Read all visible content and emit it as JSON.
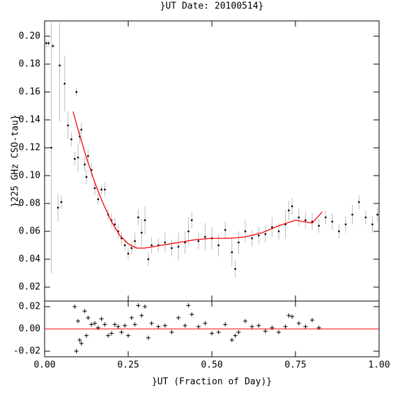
{
  "chart_data": [
    {
      "type": "scatter",
      "title": "}UT Date: 20100514}",
      "ylabel": "}225 GHz CSO-tau}",
      "xlim": [
        0,
        1
      ],
      "ylim": [
        0.01,
        0.211
      ],
      "yticks": [
        {
          "value": 0.02,
          "label": "0.02"
        },
        {
          "value": 0.04,
          "label": "0.04"
        },
        {
          "value": 0.06,
          "label": "0.06"
        },
        {
          "value": 0.08,
          "label": "0.08"
        },
        {
          "value": 0.1,
          "label": "0.10"
        },
        {
          "value": 0.12,
          "label": "0.12"
        },
        {
          "value": 0.14,
          "label": "0.14"
        },
        {
          "value": 0.16,
          "label": "0.16"
        },
        {
          "value": 0.18,
          "label": "0.18"
        },
        {
          "value": 0.2,
          "label": "0.20"
        }
      ],
      "xticks": [
        0,
        0.25,
        0.5,
        0.75,
        1
      ],
      "series": [
        {
          "color": "#000000",
          "error_color": "#bbbbbb",
          "x": [
            0.005,
            0.012,
            0.02,
            0.025,
            0.04,
            0.045,
            0.05,
            0.06,
            0.07,
            0.08,
            0.09,
            0.095,
            0.1,
            0.105,
            0.11,
            0.12,
            0.125,
            0.13,
            0.14,
            0.15,
            0.16,
            0.17,
            0.18,
            0.19,
            0.2,
            0.21,
            0.22,
            0.23,
            0.24,
            0.25,
            0.26,
            0.27,
            0.28,
            0.29,
            0.3,
            0.31,
            0.32,
            0.34,
            0.36,
            0.38,
            0.4,
            0.42,
            0.43,
            0.44,
            0.46,
            0.48,
            0.5,
            0.52,
            0.54,
            0.56,
            0.57,
            0.58,
            0.6,
            0.62,
            0.64,
            0.66,
            0.68,
            0.7,
            0.72,
            0.73,
            0.74,
            0.76,
            0.78,
            0.8,
            0.82,
            0.84,
            0.86,
            0.88,
            0.9,
            0.92,
            0.94,
            0.96,
            0.98,
            0.995
          ],
          "values": [
            0.195,
            0.195,
            0.12,
            0.193,
            0.077,
            0.179,
            0.081,
            0.166,
            0.136,
            0.126,
            0.112,
            0.16,
            0.113,
            0.128,
            0.133,
            0.108,
            0.099,
            0.114,
            0.104,
            0.091,
            0.083,
            0.09,
            0.09,
            0.072,
            0.068,
            0.065,
            0.06,
            0.055,
            0.05,
            0.044,
            0.048,
            0.053,
            0.07,
            0.059,
            0.068,
            0.04,
            0.05,
            0.05,
            0.052,
            0.048,
            0.049,
            0.052,
            0.06,
            0.068,
            0.053,
            0.056,
            0.055,
            0.05,
            0.061,
            0.045,
            0.033,
            0.052,
            0.06,
            0.055,
            0.057,
            0.058,
            0.063,
            0.06,
            0.065,
            0.075,
            0.078,
            0.07,
            0.068,
            0.067,
            0.064,
            0.07,
            0.067,
            0.06,
            0.065,
            0.072,
            0.081,
            0.07,
            0.065,
            0.072
          ],
          "errors": [
            0.003,
            0.002,
            0.09,
            0.002,
            0.01,
            0.04,
            0.005,
            0.02,
            0.01,
            0.005,
            0.005,
            0.003,
            0.01,
            0.005,
            0.005,
            0.005,
            0.005,
            0.005,
            0.005,
            0.005,
            0.004,
            0.003,
            0.005,
            0.004,
            0.005,
            0.005,
            0.005,
            0.005,
            0.004,
            0.004,
            0.005,
            0.006,
            0.006,
            0.01,
            0.01,
            0.005,
            0.006,
            0.005,
            0.007,
            0.006,
            0.01,
            0.008,
            0.01,
            0.006,
            0.006,
            0.01,
            0.008,
            0.008,
            0.006,
            0.01,
            0.006,
            0.008,
            0.008,
            0.006,
            0.006,
            0.006,
            0.007,
            0.006,
            0.01,
            0.007,
            0.006,
            0.006,
            0.006,
            0.006,
            0.005,
            0.005,
            0.006,
            0.005,
            0.006,
            0.007,
            0.005,
            0.005,
            0.006,
            0.005
          ]
        },
        {
          "type": "line",
          "color": "#ff0000",
          "x": [
            0.085,
            0.1,
            0.125,
            0.15,
            0.175,
            0.2,
            0.225,
            0.25,
            0.275,
            0.3,
            0.35,
            0.4,
            0.45,
            0.5,
            0.55,
            0.6,
            0.65,
            0.7,
            0.75,
            0.8,
            0.83
          ],
          "values": [
            0.146,
            0.133,
            0.113,
            0.095,
            0.08,
            0.067,
            0.057,
            0.051,
            0.048,
            0.048,
            0.05,
            0.052,
            0.054,
            0.055,
            0.055,
            0.056,
            0.059,
            0.064,
            0.068,
            0.066,
            0.074
          ]
        }
      ]
    },
    {
      "type": "scatter",
      "xlabel": "}UT (Fraction of Day)}",
      "xlim": [
        0,
        1
      ],
      "ylim": [
        -0.025,
        0.025
      ],
      "xticks": [
        {
          "value": 0,
          "label": "0.00"
        },
        {
          "value": 0.25,
          "label": "0.25"
        },
        {
          "value": 0.5,
          "label": "0.50"
        },
        {
          "value": 0.75,
          "label": "0.75"
        },
        {
          "value": 1,
          "label": "1.00"
        }
      ],
      "yticks": [
        {
          "value": -0.02,
          "label": "-0.02"
        },
        {
          "value": 0,
          "label": "0.00"
        },
        {
          "value": 0.02,
          "label": "0.02"
        }
      ],
      "hline": 0,
      "hline_color": "#ff0000",
      "series": [
        {
          "color": "#000000",
          "x": [
            0.09,
            0.095,
            0.1,
            0.105,
            0.11,
            0.12,
            0.125,
            0.13,
            0.14,
            0.15,
            0.16,
            0.17,
            0.18,
            0.19,
            0.2,
            0.21,
            0.22,
            0.23,
            0.24,
            0.25,
            0.26,
            0.27,
            0.28,
            0.29,
            0.3,
            0.31,
            0.32,
            0.34,
            0.36,
            0.38,
            0.4,
            0.42,
            0.43,
            0.44,
            0.46,
            0.48,
            0.5,
            0.52,
            0.54,
            0.56,
            0.57,
            0.58,
            0.6,
            0.62,
            0.64,
            0.66,
            0.68,
            0.7,
            0.72,
            0.73,
            0.74,
            0.76,
            0.78,
            0.8,
            0.82
          ],
          "values": [
            0.02,
            -0.02,
            0.007,
            -0.01,
            -0.013,
            0.016,
            -0.006,
            0.01,
            0.004,
            0.005,
            0.001,
            0.009,
            0.004,
            -0.006,
            -0.004,
            0.004,
            0.002,
            -0.003,
            0.003,
            -0.006,
            0.01,
            0.004,
            0.021,
            0.012,
            0.02,
            -0.008,
            0.005,
            0.002,
            0.003,
            -0.003,
            0.01,
            0.003,
            0.021,
            0.013,
            0.002,
            0.005,
            -0.004,
            -0.003,
            0.004,
            -0.01,
            -0.006,
            -0.003,
            0.007,
            0.002,
            0.003,
            -0.002,
            0.001,
            -0.003,
            0.002,
            0.012,
            0.011,
            0.005,
            0.002,
            0.008,
            0.001
          ]
        }
      ]
    }
  ]
}
